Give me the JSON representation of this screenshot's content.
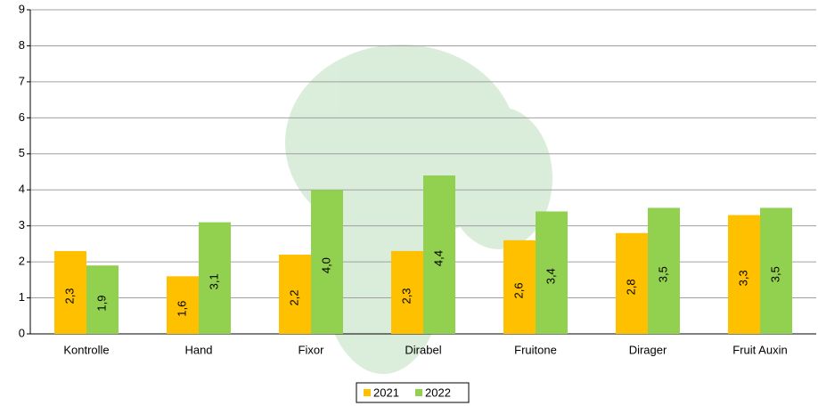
{
  "chart_data": {
    "type": "bar",
    "categories": [
      "Kontrolle",
      "Hand",
      "Fixor",
      "Dirabel",
      "Fruitone",
      "Dirager",
      "Fruit Auxin"
    ],
    "series": [
      {
        "name": "2021",
        "color": "#ffc000",
        "values": [
          2.3,
          1.6,
          2.2,
          2.3,
          2.6,
          2.8,
          3.3
        ],
        "value_labels": [
          "2,3",
          "1,6",
          "2,2",
          "2,3",
          "2,6",
          "2,8",
          "3,3"
        ]
      },
      {
        "name": "2022",
        "color": "#92d050",
        "values": [
          1.9,
          3.1,
          4.0,
          4.4,
          3.4,
          3.5,
          3.5
        ],
        "value_labels": [
          "1,9",
          "3,1",
          "4,0",
          "4,4",
          "3,4",
          "3,5",
          "3,5"
        ]
      }
    ],
    "ylim": [
      0,
      9
    ],
    "yticks": [
      0,
      1,
      2,
      3,
      4,
      5,
      6,
      7,
      8,
      9
    ],
    "grid": true,
    "legend": "bottom"
  }
}
